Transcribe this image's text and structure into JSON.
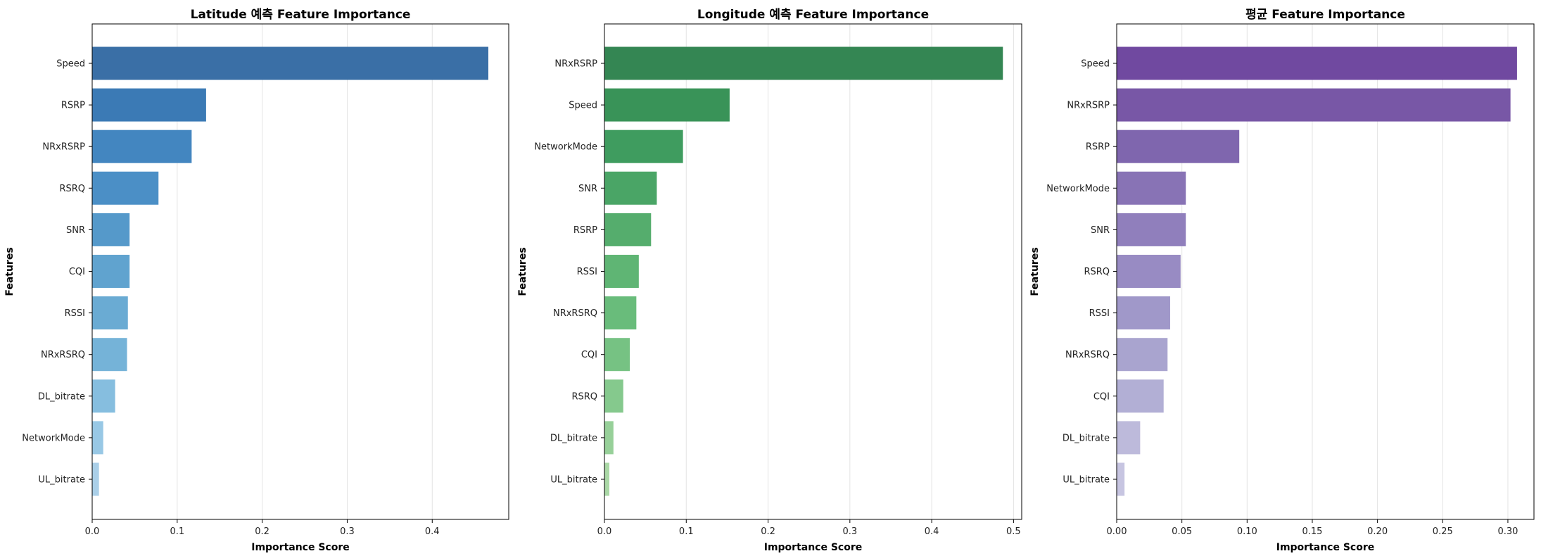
{
  "chart_data": [
    {
      "type": "bar",
      "orientation": "horizontal",
      "title": "Latitude 예측 Feature Importance",
      "xlabel": "Importance Score",
      "ylabel": "Features",
      "xlim": [
        0,
        0.49
      ],
      "xticks": [
        "0.0",
        "0.1",
        "0.2",
        "0.3",
        "0.4"
      ],
      "xtick_values": [
        0,
        0.1,
        0.2,
        0.3,
        0.4
      ],
      "grid": "x",
      "categories": [
        "Speed",
        "RSRP",
        "NRxRSRP",
        "RSRQ",
        "SNR",
        "CQI",
        "RSSI",
        "NRxRSRQ",
        "DL_bitrate",
        "NetworkMode",
        "UL_bitrate"
      ],
      "values": [
        0.466,
        0.134,
        0.117,
        0.078,
        0.044,
        0.044,
        0.042,
        0.041,
        0.027,
        0.013,
        0.008
      ],
      "colors": [
        "#3a6fa6",
        "#3b7ab5",
        "#4386c0",
        "#4b8fc6",
        "#5599ca",
        "#60a3cf",
        "#6aabd3",
        "#75b3d8",
        "#86bedf",
        "#98c8e5",
        "#aacfe8"
      ]
    },
    {
      "type": "bar",
      "orientation": "horizontal",
      "title": "Longitude 예측 Feature Importance",
      "xlabel": "Importance Score",
      "ylabel": "Features",
      "xlim": [
        0,
        0.51
      ],
      "xticks": [
        "0.0",
        "0.1",
        "0.2",
        "0.3",
        "0.4",
        "0.5"
      ],
      "xtick_values": [
        0,
        0.1,
        0.2,
        0.3,
        0.4,
        0.5
      ],
      "grid": "x",
      "categories": [
        "NRxRSRP",
        "Speed",
        "NetworkMode",
        "SNR",
        "RSRP",
        "RSSI",
        "NRxRSRQ",
        "CQI",
        "RSRQ",
        "DL_bitrate",
        "UL_bitrate"
      ],
      "values": [
        0.487,
        0.153,
        0.096,
        0.064,
        0.057,
        0.042,
        0.039,
        0.031,
        0.023,
        0.011,
        0.006
      ],
      "colors": [
        "#348653",
        "#399358",
        "#3f9c5f",
        "#4aa566",
        "#55ad6d",
        "#5fb574",
        "#69bc7b",
        "#76c283",
        "#85c98d",
        "#97d099",
        "#aad8a6"
      ]
    },
    {
      "type": "bar",
      "orientation": "horizontal",
      "title": "평균 Feature Importance",
      "xlabel": "Importance Score",
      "ylabel": "Features",
      "xlim": [
        0,
        0.32
      ],
      "xticks": [
        "0.00",
        "0.05",
        "0.10",
        "0.15",
        "0.20",
        "0.25",
        "0.30"
      ],
      "xtick_values": [
        0,
        0.05,
        0.1,
        0.15,
        0.2,
        0.25,
        0.3
      ],
      "grid": "x",
      "categories": [
        "Speed",
        "NRxRSRP",
        "RSRP",
        "NetworkMode",
        "SNR",
        "RSRQ",
        "RSSI",
        "NRxRSRQ",
        "CQI",
        "DL_bitrate",
        "UL_bitrate"
      ],
      "values": [
        0.307,
        0.302,
        0.094,
        0.053,
        0.053,
        0.049,
        0.041,
        0.039,
        0.036,
        0.018,
        0.006
      ],
      "colors": [
        "#7049a0",
        "#7857a6",
        "#7f66ae",
        "#8873b5",
        "#907fbc",
        "#988bc3",
        "#a098c9",
        "#a9a4cf",
        "#b2afd5",
        "#bdbadb",
        "#c7c5e1"
      ]
    }
  ]
}
